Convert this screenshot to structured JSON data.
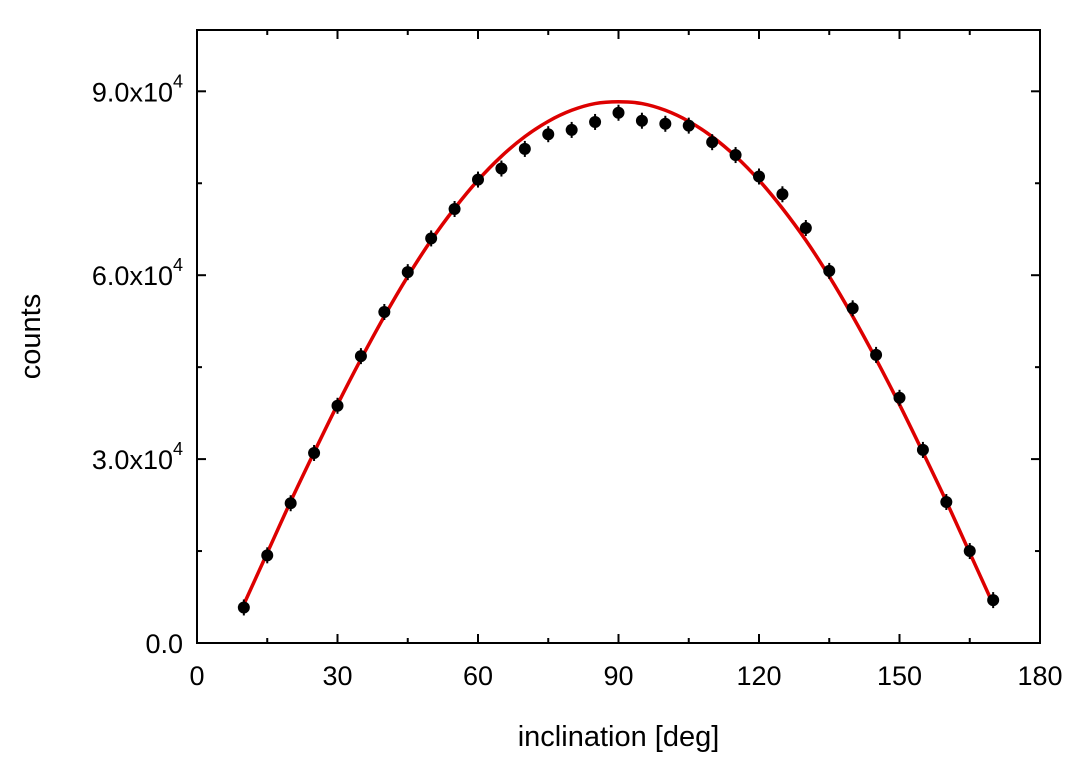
{
  "chart_data": {
    "type": "scatter",
    "title": "",
    "xlabel": "inclination [deg]",
    "ylabel": "counts",
    "xlim": [
      0,
      180
    ],
    "ylim": [
      0,
      100000
    ],
    "x_ticks": [
      {
        "value": 0,
        "label": "0"
      },
      {
        "value": 30,
        "label": "30"
      },
      {
        "value": 60,
        "label": "60"
      },
      {
        "value": 90,
        "label": "90"
      },
      {
        "value": 120,
        "label": "120"
      },
      {
        "value": 150,
        "label": "150"
      },
      {
        "value": 180,
        "label": "180"
      }
    ],
    "y_ticks": [
      {
        "value": 0,
        "mantissa": "0.0",
        "exponent": ""
      },
      {
        "value": 30000,
        "mantissa": "3.0x10",
        "exponent": "4"
      },
      {
        "value": 60000,
        "mantissa": "6.0x10",
        "exponent": "4"
      },
      {
        "value": 90000,
        "mantissa": "9.0x10",
        "exponent": "4"
      }
    ],
    "x_minor_step": 15,
    "y_minor_step": 15000,
    "grid": false,
    "series": [
      {
        "kind": "points",
        "color": "#000000",
        "x": [
          10,
          15,
          20,
          25,
          30,
          35,
          40,
          45,
          50,
          55,
          60,
          65,
          70,
          75,
          80,
          85,
          90,
          95,
          100,
          105,
          110,
          115,
          120,
          125,
          130,
          135,
          140,
          145,
          150,
          155,
          160,
          165,
          170
        ],
        "y": [
          5800,
          14300,
          22800,
          31000,
          38700,
          46800,
          54000,
          60500,
          66000,
          70800,
          75600,
          77400,
          80600,
          83000,
          83700,
          85000,
          86500,
          85200,
          84700,
          84400,
          81700,
          79600,
          76100,
          73200,
          67700,
          60700,
          54600,
          47000,
          40000,
          31500,
          23000,
          15000,
          7000
        ]
      },
      {
        "kind": "fit",
        "color": "#dd0000",
        "x": [
          10,
          15,
          20,
          25,
          30,
          35,
          40,
          45,
          50,
          55,
          60,
          65,
          70,
          75,
          80,
          85,
          90,
          95,
          100,
          105,
          110,
          115,
          120,
          125,
          130,
          135,
          140,
          145,
          150,
          155,
          160,
          165,
          170
        ],
        "y": [
          6300,
          14700,
          23100,
          31100,
          38900,
          46300,
          53300,
          59800,
          65700,
          70900,
          75500,
          79400,
          82600,
          85100,
          86900,
          88000,
          88300,
          88000,
          86900,
          85100,
          82600,
          79400,
          75500,
          70900,
          65700,
          59800,
          53300,
          46300,
          38900,
          31100,
          23100,
          14700,
          6300
        ]
      }
    ]
  }
}
